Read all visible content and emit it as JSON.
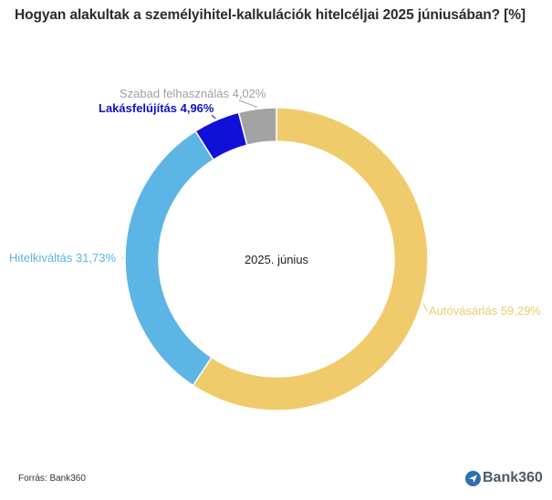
{
  "title": "Hogyan alakultak a személyihitel-kalkulációk hitelcéljai 2025 júniusában? [%]",
  "source": "Forrás: Bank360",
  "brand": {
    "name": "Bank360",
    "icon": "plane-icon"
  },
  "chart_data": {
    "type": "pie",
    "donut": true,
    "center_label": "2025. június",
    "slices": [
      {
        "label": "Autóvásárlás",
        "value": 59.29,
        "value_text": "59,29%",
        "color": "#EFCB6C",
        "label_color": "#EFCB6C"
      },
      {
        "label": "Hitelkiváltás",
        "value": 31.73,
        "value_text": "31,73%",
        "color": "#5DB5E5",
        "label_color": "#5DB5E5"
      },
      {
        "label": "Lakásfelújítás",
        "value": 4.96,
        "value_text": "4,96%",
        "color": "#1010D8",
        "label_color": "#1010C8"
      },
      {
        "label": "Szabad felhasználás",
        "value": 4.02,
        "value_text": "4,02%",
        "color": "#A3A3A3",
        "label_color": "#A0A0A0"
      }
    ]
  }
}
